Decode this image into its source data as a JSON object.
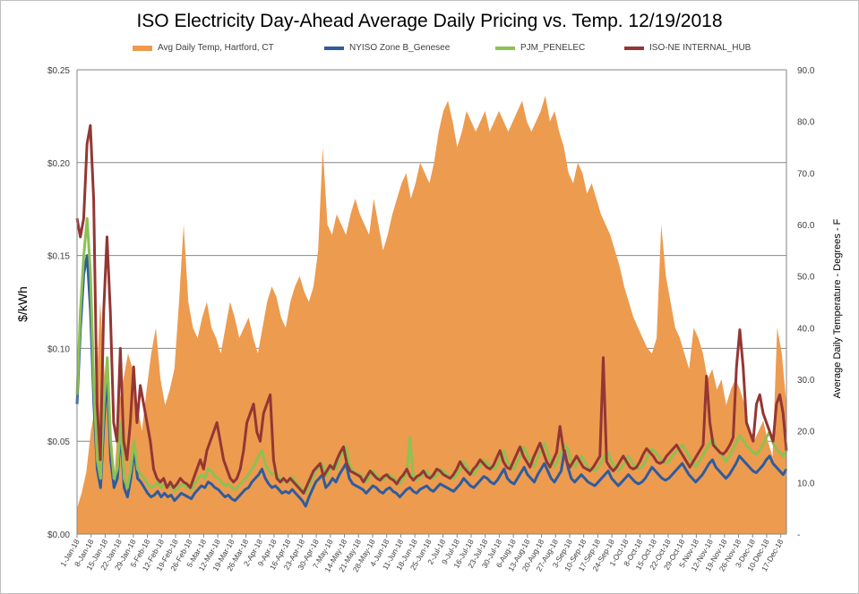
{
  "chart_data": {
    "type": "area+line",
    "title": "ISO Electricity Day-Ahead Average Daily Pricing vs. Temp. 12/19/2018",
    "ylabel": "$/kWh",
    "y2label": "Average Daily Temperature - Degrees - F",
    "ylim": [
      0,
      0.25
    ],
    "y2lim": [
      0,
      90
    ],
    "y_ticks": [
      "$0.00",
      "$0.05",
      "$0.10",
      "$0.15",
      "$0.20",
      "$0.25"
    ],
    "y2_ticks": [
      "-",
      "10.0",
      "20.0",
      "30.0",
      "40.0",
      "50.0",
      "60.0",
      "70.0",
      "80.0",
      "90.0"
    ],
    "grid": true,
    "legend_position": "top",
    "x_tick_labels": [
      "1-Jan-18",
      "8-Jan-18",
      "15-Jan-18",
      "22-Jan-18",
      "29-Jan-18",
      "5-Feb-18",
      "12-Feb-18",
      "19-Feb-18",
      "26-Feb-18",
      "5-Mar-18",
      "12-Mar-18",
      "19-Mar-18",
      "26-Mar-18",
      "2-Apr-18",
      "9-Apr-18",
      "16-Apr-18",
      "23-Apr-18",
      "30-Apr-18",
      "7-May-18",
      "14-May-18",
      "21-May-18",
      "28-May-18",
      "4-Jun-18",
      "11-Jun-18",
      "18-Jun-18",
      "25-Jun-18",
      "2-Jul-18",
      "9-Jul-18",
      "16-Jul-18",
      "23-Jul-18",
      "30-Jul-18",
      "6-Aug-18",
      "13-Aug-18",
      "20-Aug-18",
      "27-Aug-18",
      "3-Sep-18",
      "10-Sep-18",
      "17-Sep-18",
      "24-Sep-18",
      "1-Oct-18",
      "8-Oct-18",
      "15-Oct-18",
      "22-Oct-18",
      "29-Oct-18",
      "5-Nov-18",
      "12-Nov-18",
      "19-Nov-18",
      "26-Nov-18",
      "3-Dec-18",
      "10-Dec-18",
      "17-Dec-18"
    ],
    "series": [
      {
        "name": "Avg Daily Temp, Hartford, CT",
        "type": "area",
        "axis": "right",
        "color": "#ED9B4F",
        "values": [
          5,
          8,
          12,
          20,
          25,
          45,
          30,
          20,
          10,
          25,
          30,
          35,
          32,
          25,
          20,
          28,
          35,
          40,
          30,
          25,
          28,
          32,
          45,
          60,
          45,
          40,
          38,
          42,
          45,
          40,
          38,
          35,
          40,
          45,
          42,
          38,
          40,
          42,
          38,
          35,
          40,
          45,
          48,
          46,
          42,
          40,
          45,
          48,
          50,
          47,
          45,
          48,
          55,
          75,
          60,
          58,
          62,
          60,
          58,
          62,
          65,
          62,
          60,
          58,
          65,
          60,
          55,
          58,
          62,
          65,
          68,
          70,
          65,
          68,
          72,
          70,
          68,
          72,
          78,
          82,
          84,
          80,
          75,
          78,
          82,
          80,
          78,
          80,
          82,
          78,
          80,
          82,
          80,
          78,
          80,
          82,
          84,
          80,
          78,
          80,
          82,
          85,
          80,
          82,
          78,
          75,
          70,
          68,
          72,
          70,
          66,
          68,
          65,
          62,
          60,
          58,
          55,
          52,
          48,
          45,
          42,
          40,
          38,
          36,
          35,
          38,
          60,
          50,
          45,
          40,
          38,
          35,
          32,
          40,
          38,
          35,
          30,
          32,
          28,
          30,
          25,
          28,
          30,
          28,
          25,
          20,
          18,
          20,
          22,
          18,
          15,
          40,
          35,
          25
        ]
      },
      {
        "name": "NYISO Zone B_Genesee",
        "type": "line",
        "axis": "left",
        "color": "#2E5C9E",
        "values": [
          0.07,
          0.11,
          0.14,
          0.15,
          0.12,
          0.07,
          0.035,
          0.025,
          0.06,
          0.085,
          0.04,
          0.025,
          0.03,
          0.055,
          0.025,
          0.02,
          0.03,
          0.045,
          0.03,
          0.028,
          0.025,
          0.022,
          0.02,
          0.021,
          0.023,
          0.02,
          0.022,
          0.02,
          0.021,
          0.018,
          0.02,
          0.022,
          0.021,
          0.02,
          0.019,
          0.022,
          0.024,
          0.026,
          0.025,
          0.028,
          0.027,
          0.025,
          0.024,
          0.022,
          0.02,
          0.021,
          0.019,
          0.018,
          0.02,
          0.022,
          0.024,
          0.025,
          0.028,
          0.03,
          0.032,
          0.035,
          0.03,
          0.027,
          0.025,
          0.026,
          0.024,
          0.022,
          0.023,
          0.022,
          0.024,
          0.022,
          0.02,
          0.018,
          0.015,
          0.02,
          0.024,
          0.028,
          0.03,
          0.032,
          0.025,
          0.027,
          0.03,
          0.028,
          0.032,
          0.035,
          0.038,
          0.03,
          0.027,
          0.026,
          0.025,
          0.024,
          0.022,
          0.024,
          0.026,
          0.025,
          0.023,
          0.022,
          0.024,
          0.025,
          0.023,
          0.022,
          0.02,
          0.022,
          0.024,
          0.025,
          0.023,
          0.022,
          0.024,
          0.025,
          0.026,
          0.024,
          0.023,
          0.025,
          0.027,
          0.026,
          0.025,
          0.024,
          0.023,
          0.025,
          0.027,
          0.03,
          0.028,
          0.026,
          0.025,
          0.027,
          0.029,
          0.031,
          0.03,
          0.028,
          0.027,
          0.029,
          0.032,
          0.035,
          0.03,
          0.028,
          0.027,
          0.03,
          0.033,
          0.036,
          0.032,
          0.03,
          0.028,
          0.032,
          0.035,
          0.038,
          0.034,
          0.03,
          0.028,
          0.031,
          0.034,
          0.045,
          0.036,
          0.03,
          0.028,
          0.03,
          0.032,
          0.03,
          0.028,
          0.027,
          0.026,
          0.028,
          0.03,
          0.032,
          0.034,
          0.03,
          0.028,
          0.026,
          0.028,
          0.03,
          0.032,
          0.03,
          0.028,
          0.027,
          0.028,
          0.03,
          0.033,
          0.036,
          0.034,
          0.032,
          0.03,
          0.029,
          0.03,
          0.032,
          0.034,
          0.036,
          0.038,
          0.035,
          0.032,
          0.03,
          0.028,
          0.03,
          0.032,
          0.035,
          0.038,
          0.04,
          0.036,
          0.034,
          0.032,
          0.03,
          0.032,
          0.035,
          0.038,
          0.042,
          0.04,
          0.038,
          0.036,
          0.034,
          0.033,
          0.035,
          0.037,
          0.04,
          0.042,
          0.038,
          0.036,
          0.034,
          0.032,
          0.035
        ]
      },
      {
        "name": "PJM_PENELEC",
        "type": "line",
        "axis": "left",
        "color": "#8DC152",
        "values": [
          0.075,
          0.12,
          0.15,
          0.17,
          0.14,
          0.08,
          0.04,
          0.03,
          0.07,
          0.095,
          0.05,
          0.03,
          0.035,
          0.06,
          0.03,
          0.025,
          0.035,
          0.05,
          0.035,
          0.032,
          0.03,
          0.027,
          0.025,
          0.026,
          0.028,
          0.025,
          0.027,
          0.025,
          0.026,
          0.023,
          0.025,
          0.027,
          0.026,
          0.025,
          0.024,
          0.027,
          0.03,
          0.032,
          0.03,
          0.035,
          0.034,
          0.031,
          0.03,
          0.028,
          0.026,
          0.027,
          0.025,
          0.024,
          0.026,
          0.028,
          0.03,
          0.032,
          0.035,
          0.038,
          0.042,
          0.045,
          0.038,
          0.034,
          0.032,
          0.033,
          0.031,
          0.028,
          0.029,
          0.028,
          0.031,
          0.028,
          0.026,
          0.024,
          0.022,
          0.026,
          0.03,
          0.034,
          0.036,
          0.038,
          0.031,
          0.034,
          0.037,
          0.035,
          0.04,
          0.044,
          0.047,
          0.038,
          0.034,
          0.033,
          0.032,
          0.031,
          0.028,
          0.031,
          0.034,
          0.032,
          0.03,
          0.029,
          0.031,
          0.032,
          0.03,
          0.029,
          0.027,
          0.03,
          0.032,
          0.052,
          0.031,
          0.029,
          0.031,
          0.032,
          0.034,
          0.031,
          0.03,
          0.032,
          0.035,
          0.034,
          0.032,
          0.031,
          0.03,
          0.032,
          0.035,
          0.039,
          0.036,
          0.034,
          0.032,
          0.035,
          0.037,
          0.04,
          0.038,
          0.036,
          0.035,
          0.037,
          0.041,
          0.045,
          0.039,
          0.036,
          0.035,
          0.039,
          0.043,
          0.047,
          0.042,
          0.039,
          0.036,
          0.041,
          0.045,
          0.049,
          0.044,
          0.039,
          0.036,
          0.04,
          0.044,
          0.048,
          0.046,
          0.039,
          0.036,
          0.039,
          0.042,
          0.039,
          0.036,
          0.035,
          0.034,
          0.036,
          0.039,
          0.042,
          0.044,
          0.039,
          0.036,
          0.034,
          0.036,
          0.039,
          0.042,
          0.039,
          0.036,
          0.035,
          0.036,
          0.039,
          0.043,
          0.046,
          0.044,
          0.042,
          0.039,
          0.038,
          0.039,
          0.042,
          0.044,
          0.046,
          0.048,
          0.045,
          0.042,
          0.039,
          0.036,
          0.039,
          0.042,
          0.045,
          0.048,
          0.052,
          0.047,
          0.044,
          0.042,
          0.039,
          0.042,
          0.045,
          0.049,
          0.053,
          0.051,
          0.048,
          0.046,
          0.044,
          0.043,
          0.045,
          0.048,
          0.052,
          0.055,
          0.049,
          0.046,
          0.044,
          0.042,
          0.045
        ]
      },
      {
        "name": "ISO-NE INTERNAL_HUB",
        "type": "line",
        "axis": "left",
        "color": "#943634",
        "values": [
          0.17,
          0.16,
          0.17,
          0.21,
          0.22,
          0.18,
          0.07,
          0.04,
          0.12,
          0.16,
          0.12,
          0.06,
          0.05,
          0.1,
          0.05,
          0.04,
          0.06,
          0.09,
          0.06,
          0.08,
          0.07,
          0.06,
          0.05,
          0.035,
          0.03,
          0.028,
          0.03,
          0.025,
          0.028,
          0.025,
          0.027,
          0.03,
          0.028,
          0.027,
          0.025,
          0.03,
          0.035,
          0.04,
          0.035,
          0.045,
          0.05,
          0.055,
          0.06,
          0.05,
          0.04,
          0.035,
          0.03,
          0.028,
          0.03,
          0.035,
          0.045,
          0.06,
          0.065,
          0.07,
          0.055,
          0.05,
          0.065,
          0.07,
          0.075,
          0.04,
          0.03,
          0.028,
          0.03,
          0.028,
          0.03,
          0.028,
          0.026,
          0.024,
          0.022,
          0.026,
          0.03,
          0.034,
          0.036,
          0.038,
          0.031,
          0.034,
          0.037,
          0.035,
          0.04,
          0.044,
          0.047,
          0.038,
          0.034,
          0.033,
          0.032,
          0.031,
          0.028,
          0.031,
          0.034,
          0.032,
          0.03,
          0.029,
          0.031,
          0.032,
          0.03,
          0.029,
          0.027,
          0.03,
          0.032,
          0.035,
          0.031,
          0.029,
          0.031,
          0.032,
          0.034,
          0.031,
          0.03,
          0.032,
          0.035,
          0.034,
          0.032,
          0.031,
          0.03,
          0.032,
          0.035,
          0.039,
          0.036,
          0.034,
          0.032,
          0.035,
          0.037,
          0.04,
          0.038,
          0.036,
          0.035,
          0.037,
          0.041,
          0.045,
          0.039,
          0.036,
          0.035,
          0.039,
          0.043,
          0.047,
          0.042,
          0.039,
          0.036,
          0.041,
          0.045,
          0.049,
          0.044,
          0.039,
          0.036,
          0.04,
          0.044,
          0.058,
          0.046,
          0.039,
          0.036,
          0.039,
          0.042,
          0.039,
          0.036,
          0.035,
          0.034,
          0.036,
          0.039,
          0.042,
          0.095,
          0.039,
          0.036,
          0.034,
          0.036,
          0.039,
          0.042,
          0.039,
          0.036,
          0.035,
          0.036,
          0.039,
          0.043,
          0.046,
          0.044,
          0.042,
          0.039,
          0.038,
          0.039,
          0.042,
          0.044,
          0.046,
          0.048,
          0.045,
          0.042,
          0.039,
          0.036,
          0.039,
          0.042,
          0.045,
          0.048,
          0.085,
          0.06,
          0.048,
          0.046,
          0.044,
          0.043,
          0.045,
          0.048,
          0.052,
          0.09,
          0.11,
          0.09,
          0.06,
          0.055,
          0.05,
          0.07,
          0.075,
          0.065,
          0.06,
          0.055,
          0.05,
          0.07,
          0.075,
          0.065,
          0.045
        ]
      }
    ]
  }
}
